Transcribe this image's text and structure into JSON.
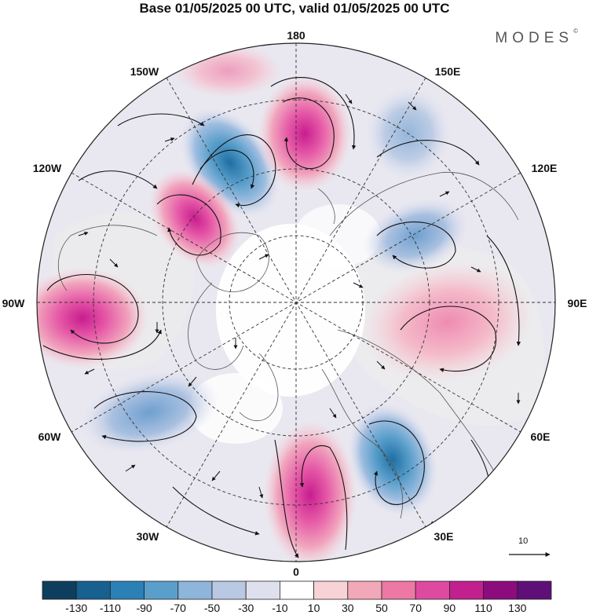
{
  "title": "Base 01/05/2025 00 UTC, valid 01/05/2025 00 UTC",
  "brand": "MODES",
  "brand_mark": "©",
  "longitude_labels": {
    "lon_180": "180",
    "lon_150e": "150E",
    "lon_120e": "120E",
    "lon_90e": "90E",
    "lon_60e": "60E",
    "lon_30e": "30E",
    "lon_0": "0",
    "lon_30w": "30W",
    "lon_60w": "60W",
    "lon_90w": "90W",
    "lon_120w": "120W",
    "lon_150w": "150W"
  },
  "reference_vector_label": "10",
  "colorbar": {
    "ticks": [
      "-130",
      "-110",
      "-90",
      "-70",
      "-50",
      "-30",
      "-10",
      "10",
      "30",
      "50",
      "70",
      "90",
      "110",
      "130"
    ],
    "colors": [
      "#0d3e5e",
      "#17608f",
      "#2b80b6",
      "#5a9fcb",
      "#8eb6db",
      "#b9c8e3",
      "#dfe0ee",
      "#ffffff",
      "#f7d3d8",
      "#f2a8b8",
      "#ec78a3",
      "#de4aa0",
      "#c21f8f",
      "#8c0b7d",
      "#5e0f78"
    ]
  },
  "map": {
    "projection": "north-polar-stereographic",
    "shading_palette": {
      "neg_strong": "#1d6fa3",
      "neg_mid": "#7aa6d4",
      "neg_weak": "#c5d0e6",
      "pos_weak": "#f4c7d1",
      "pos_mid": "#ee8cb0",
      "pos_strong": "#cf2f98"
    }
  }
}
